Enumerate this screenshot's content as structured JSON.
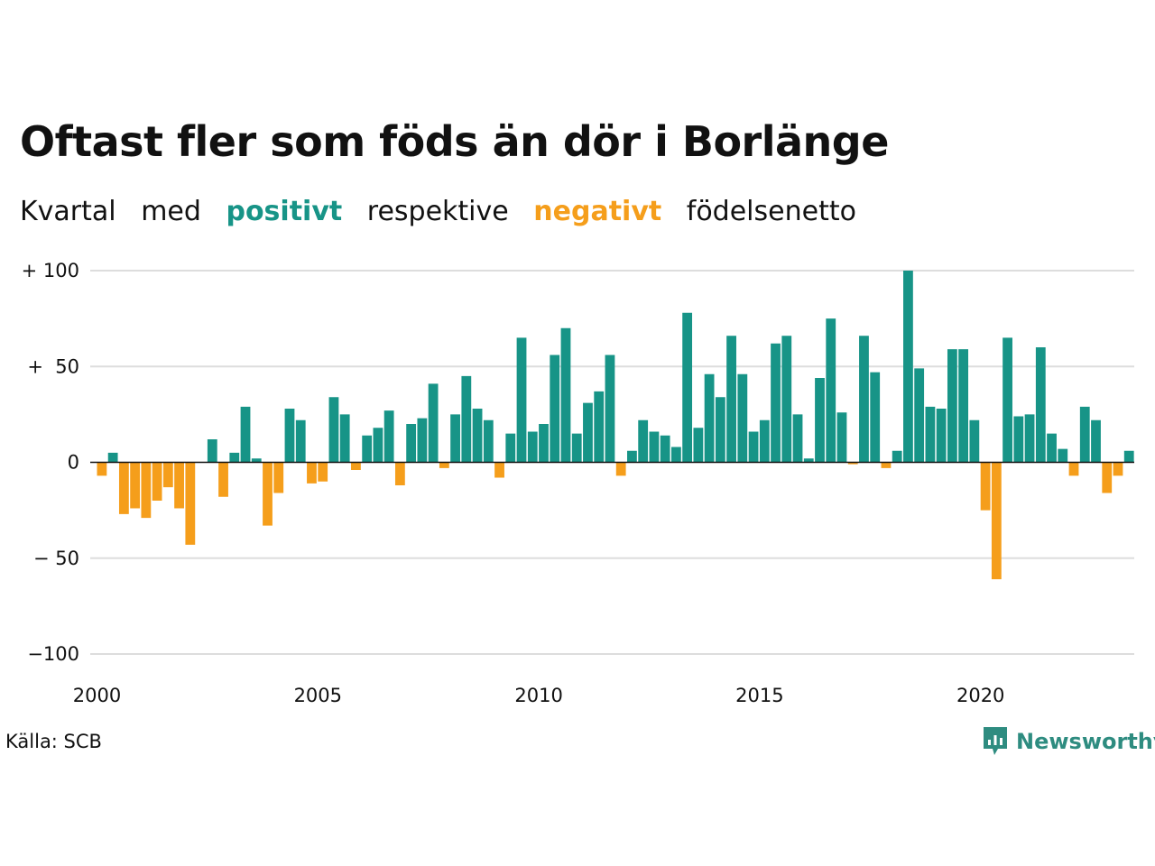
{
  "title": "Oftast fler som föds än dör i Borlänge",
  "subtitle": {
    "w1": "Kvartal",
    "w2": "med",
    "positive": "positivt",
    "w3": "respektive",
    "negative": "negativt",
    "w4": "födelsenetto"
  },
  "colors": {
    "positive": "#179487",
    "negative": "#F59E1B",
    "grid": "#dddddd"
  },
  "source": "Källa: SCB",
  "logo": {
    "text": "Newsworthy",
    "icon": "bar-chart-speech-icon"
  },
  "chart_data": {
    "type": "bar",
    "x_start": "2000 Q1",
    "x_ticks": [
      "2000",
      "2005",
      "2010",
      "2015",
      "2020"
    ],
    "y_ticks": [
      "+ 100",
      "+  50",
      "0",
      "− 50",
      "−100"
    ],
    "y_tick_values": [
      100,
      50,
      0,
      -50,
      -100
    ],
    "ylim": [
      -100,
      100
    ],
    "grid": true,
    "values": [
      -7,
      5,
      -27,
      -24,
      -29,
      -20,
      -13,
      -24,
      -43,
      0,
      12,
      -18,
      5,
      29,
      2,
      -33,
      -16,
      28,
      22,
      -11,
      -10,
      34,
      25,
      -4,
      14,
      18,
      27,
      -12,
      20,
      23,
      41,
      -3,
      25,
      45,
      28,
      22,
      -8,
      15,
      65,
      16,
      20,
      56,
      70,
      15,
      31,
      37,
      56,
      -7,
      6,
      22,
      16,
      14,
      8,
      78,
      18,
      46,
      34,
      66,
      46,
      16,
      22,
      62,
      66,
      25,
      2,
      44,
      75,
      26,
      -1,
      66,
      47,
      -3,
      6,
      100,
      49,
      29,
      28,
      59,
      59,
      22,
      -25,
      -61,
      65,
      24,
      25,
      60,
      15,
      7,
      -7,
      29,
      22,
      -16,
      -7,
      6
    ]
  }
}
